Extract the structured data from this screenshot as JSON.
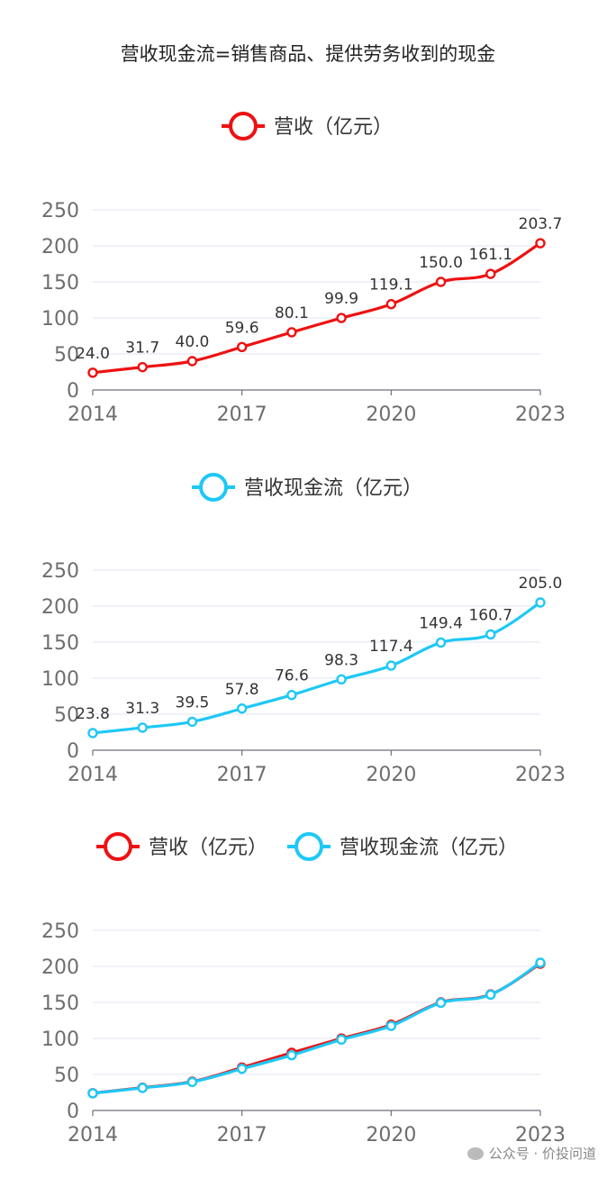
{
  "title": "营收现金流=销售商品、提供劳务收到的现金",
  "colors": {
    "revenue": "#ee1111",
    "cashflow": "#1ec8f6"
  },
  "watermark": {
    "text": "公众号 · 价投问道",
    "icon": "wechat-icon"
  },
  "chart_data": [
    {
      "type": "line",
      "legend": [
        "营收（亿元）"
      ],
      "x": [
        "2014",
        "2015",
        "2016",
        "2017",
        "2018",
        "2019",
        "2020",
        "2021",
        "2022",
        "2023"
      ],
      "xticks": [
        "2014",
        "2017",
        "2020",
        "2023"
      ],
      "yticks": [
        "0",
        "50",
        "100",
        "150",
        "200",
        "250"
      ],
      "ylim": [
        0,
        250
      ],
      "series": [
        {
          "name": "营收（亿元）",
          "color": "#ee1111",
          "values": [
            24.0,
            31.7,
            40.0,
            59.6,
            80.1,
            99.9,
            119.1,
            150.0,
            161.1,
            203.7
          ],
          "labels": [
            "24.0",
            "31.7",
            "40.0",
            "59.6",
            "80.1",
            "99.9",
            "119.1",
            "150.0",
            "161.1",
            "203.7"
          ]
        }
      ]
    },
    {
      "type": "line",
      "legend": [
        "营收现金流（亿元）"
      ],
      "x": [
        "2014",
        "2015",
        "2016",
        "2017",
        "2018",
        "2019",
        "2020",
        "2021",
        "2022",
        "2023"
      ],
      "xticks": [
        "2014",
        "2017",
        "2020",
        "2023"
      ],
      "yticks": [
        "0",
        "50",
        "100",
        "150",
        "200",
        "250"
      ],
      "ylim": [
        0,
        250
      ],
      "series": [
        {
          "name": "营收现金流（亿元）",
          "color": "#1ec8f6",
          "values": [
            23.8,
            31.3,
            39.5,
            57.8,
            76.6,
            98.3,
            117.4,
            149.4,
            160.7,
            205.0
          ],
          "labels": [
            "23.8",
            "31.3",
            "39.5",
            "57.8",
            "76.6",
            "98.3",
            "117.4",
            "149.4",
            "160.7",
            "205.0"
          ]
        }
      ]
    },
    {
      "type": "line",
      "legend": [
        "营收（亿元）",
        "营收现金流（亿元）"
      ],
      "x": [
        "2014",
        "2015",
        "2016",
        "2017",
        "2018",
        "2019",
        "2020",
        "2021",
        "2022",
        "2023"
      ],
      "xticks": [
        "2014",
        "2017",
        "2020",
        "2023"
      ],
      "yticks": [
        "0",
        "50",
        "100",
        "150",
        "200",
        "250"
      ],
      "ylim": [
        0,
        250
      ],
      "series": [
        {
          "name": "营收（亿元）",
          "color": "#ee1111",
          "values": [
            24.0,
            31.7,
            40.0,
            59.6,
            80.1,
            99.9,
            119.1,
            150.0,
            161.1,
            203.7
          ]
        },
        {
          "name": "营收现金流（亿元）",
          "color": "#1ec8f6",
          "values": [
            23.8,
            31.3,
            39.5,
            57.8,
            76.6,
            98.3,
            117.4,
            149.4,
            160.7,
            205.0
          ]
        }
      ]
    }
  ]
}
